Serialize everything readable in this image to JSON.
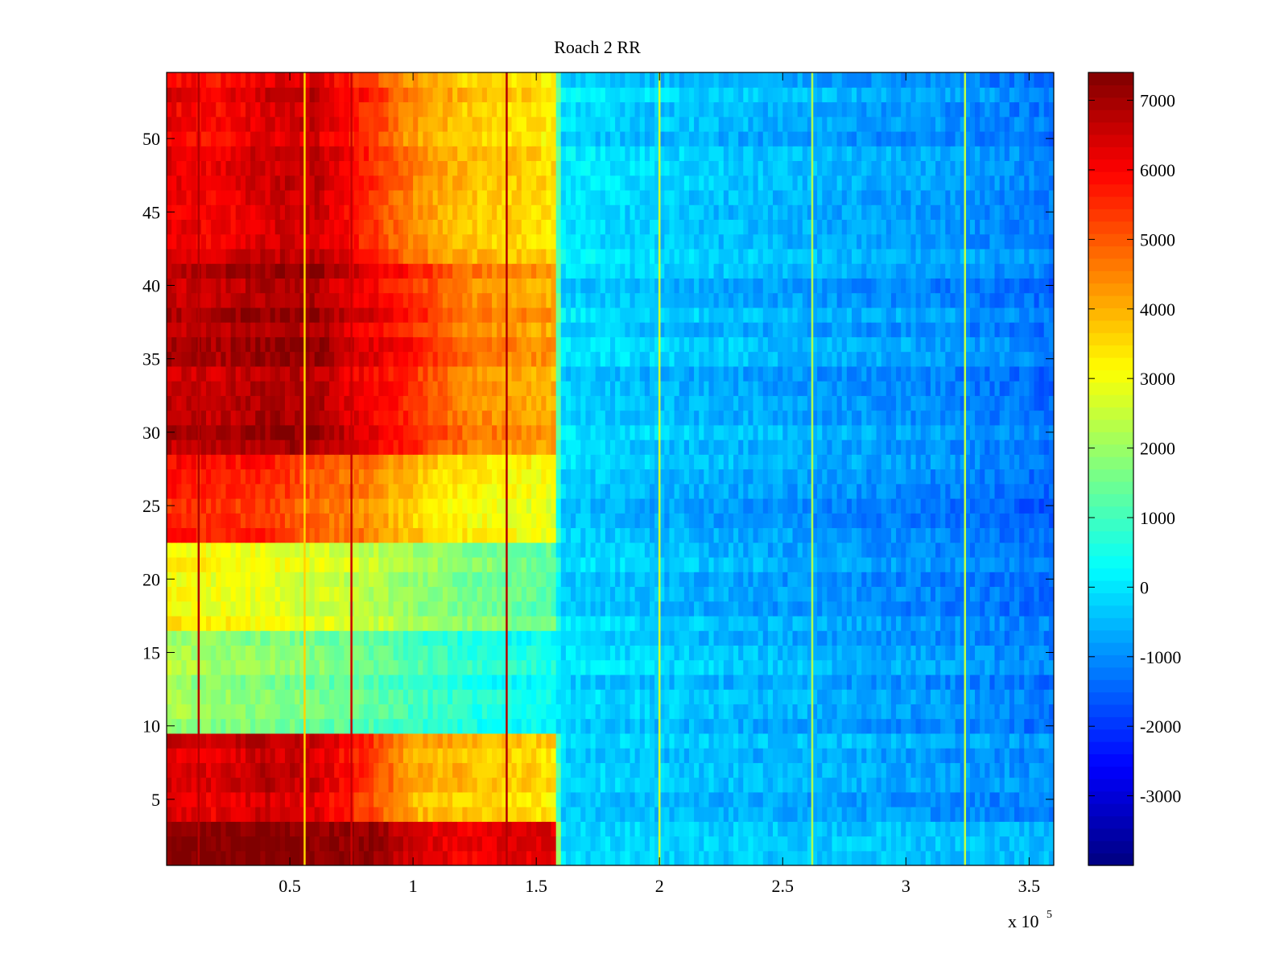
{
  "chart_data": {
    "type": "heatmap",
    "title": "Roach 2 RR",
    "xlabel": "",
    "ylabel": "",
    "x_exponent_label": "x 10",
    "x_exponent_power": "5",
    "xlim": [
      0,
      360000
    ],
    "ylim": [
      0.5,
      54.5
    ],
    "xticks": [
      0.5,
      1,
      1.5,
      2,
      2.5,
      3,
      3.5
    ],
    "xtick_labels": [
      "0.5",
      "1",
      "1.5",
      "2",
      "2.5",
      "3",
      "3.5"
    ],
    "yticks": [
      5,
      10,
      15,
      20,
      25,
      30,
      35,
      40,
      45,
      50
    ],
    "ytick_labels": [
      "5",
      "10",
      "15",
      "20",
      "25",
      "30",
      "35",
      "40",
      "45",
      "50"
    ],
    "colorbar": {
      "colormap": "jet",
      "clim": [
        -4000,
        7400
      ],
      "ticks": [
        -3000,
        -2000,
        -1000,
        0,
        1000,
        2000,
        3000,
        4000,
        5000,
        6000,
        7000
      ],
      "tick_labels": [
        "-3000",
        "-2000",
        "-1000",
        "0",
        "1000",
        "2000",
        "3000",
        "4000",
        "5000",
        "6000",
        "7000"
      ]
    },
    "rows": 54,
    "columns_x": [
      0,
      20000,
      40000,
      60000,
      80000,
      100000,
      120000,
      140000,
      157000,
      160000,
      200000,
      240000,
      280000,
      320000,
      360000
    ],
    "row_profiles": [
      {
        "rows": [
          1,
          3
        ],
        "values": [
          7300,
          7300,
          7300,
          7200,
          7100,
          6400,
          6000,
          6200,
          6200,
          -200,
          -300,
          -400,
          -450,
          -500,
          -600
        ]
      },
      {
        "rows": [
          4,
          9
        ],
        "values": [
          6400,
          6200,
          6600,
          6400,
          5400,
          4000,
          3800,
          3600,
          3400,
          -300,
          -400,
          -600,
          -700,
          -900,
          -1100
        ]
      },
      {
        "rows": [
          10,
          16
        ],
        "values": [
          2200,
          1900,
          1800,
          1600,
          1400,
          1000,
          700,
          500,
          400,
          -100,
          -300,
          -500,
          -700,
          -900,
          -1200
        ]
      },
      {
        "rows": [
          17,
          22
        ],
        "values": [
          3200,
          3000,
          2900,
          2700,
          2400,
          2000,
          1700,
          1500,
          1300,
          -200,
          -400,
          -700,
          -900,
          -1100,
          -1300
        ]
      },
      {
        "rows": [
          23,
          28
        ],
        "values": [
          5800,
          5600,
          5600,
          5000,
          4600,
          3800,
          3300,
          3100,
          3000,
          -200,
          -500,
          -700,
          -900,
          -1100,
          -1400
        ]
      },
      {
        "rows": [
          29,
          41
        ],
        "values": [
          6700,
          6700,
          7000,
          7000,
          6200,
          5600,
          4600,
          4300,
          4100,
          -100,
          -400,
          -600,
          -800,
          -1000,
          -1300
        ]
      },
      {
        "rows": [
          42,
          54
        ],
        "values": [
          6200,
          6000,
          6400,
          6600,
          5600,
          4400,
          3800,
          3600,
          3400,
          0,
          -300,
          -500,
          -700,
          -900,
          -1200
        ]
      }
    ],
    "vertical_artifacts": [
      {
        "x": 13000,
        "value": 6800
      },
      {
        "x": 56000,
        "value": 3600
      },
      {
        "x": 75000,
        "value": 6600
      },
      {
        "x": 138000,
        "value": 6800
      },
      {
        "x": 200000,
        "value": 2600
      },
      {
        "x": 262000,
        "value": 2200
      },
      {
        "x": 324000,
        "value": 2400
      }
    ]
  }
}
